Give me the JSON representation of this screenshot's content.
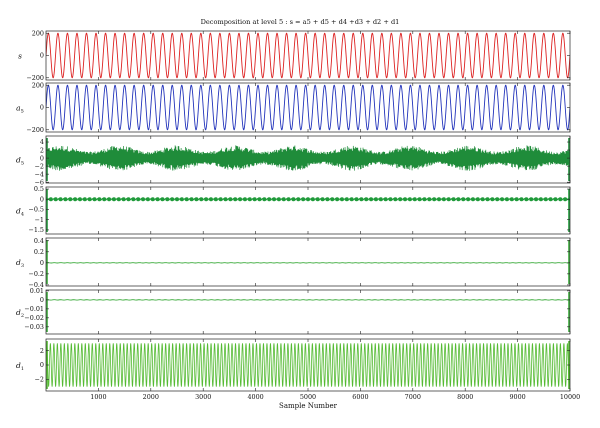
{
  "chart_data": {
    "type": "line",
    "title": "Decomposition at level 5 : s = a5 + d5 + d4 +d3 + d2 + d1",
    "xlabel": "Sample Number",
    "x_range": [
      0,
      10000
    ],
    "x_ticks": [
      "1000",
      "2000",
      "3000",
      "4000",
      "5000",
      "6000",
      "7000",
      "8000",
      "9000",
      "10000"
    ],
    "x_tick_values": [
      1000,
      2000,
      3000,
      4000,
      5000,
      6000,
      7000,
      8000,
      9000,
      10000
    ],
    "grid": false,
    "panels": [
      {
        "key": "s",
        "label_main": "s",
        "label_sub": "",
        "color": "#dd2222",
        "ylim": [
          -220,
          220
        ],
        "y_ticks": [
          "200",
          "0",
          "−200"
        ],
        "y_tick_values": [
          200,
          0,
          -200
        ],
        "signal": {
          "kind": "sine",
          "amplitude": 200,
          "offset": 0,
          "cycles": 55
        }
      },
      {
        "key": "a5",
        "label_main": "a",
        "label_sub": "5",
        "color": "#2233bb",
        "ylim": [
          -220,
          220
        ],
        "y_ticks": [
          "200",
          "0",
          "−200"
        ],
        "y_tick_values": [
          200,
          0,
          -200
        ],
        "signal": {
          "kind": "sine",
          "amplitude": 200,
          "offset": 0,
          "cycles": 55
        }
      },
      {
        "key": "d5",
        "label_main": "d",
        "label_sub": "5",
        "color": "#1f8c3a",
        "ylim": [
          -6.2,
          5.5
        ],
        "y_ticks": [
          "4",
          "2",
          "0",
          "−2",
          "−4",
          "−6"
        ],
        "y_tick_values": [
          4,
          2,
          0,
          -2,
          -4,
          -6
        ],
        "signal": {
          "kind": "noise",
          "amplitude": 3.2,
          "offset": 0,
          "density": 700
        }
      },
      {
        "key": "d4",
        "label_main": "d",
        "label_sub": "4",
        "color": "#1f9a3a",
        "ylim": [
          -1.7,
          0.6
        ],
        "y_ticks": [
          "0.5",
          "0",
          "−0.5",
          "−1",
          "−1.5"
        ],
        "y_tick_values": [
          0.5,
          0,
          -0.5,
          -1,
          -1.5
        ],
        "signal": {
          "kind": "beads",
          "amplitude": 0.035,
          "offset": 0,
          "count": 108
        }
      },
      {
        "key": "d3",
        "label_main": "d",
        "label_sub": "3",
        "color": "#3aaa3a",
        "ylim": [
          -0.42,
          0.45
        ],
        "y_ticks": [
          "0.4",
          "0.2",
          "0",
          "−0.2",
          "−0.4"
        ],
        "y_tick_values": [
          0.4,
          0.2,
          0,
          -0.2,
          -0.4
        ],
        "signal": {
          "kind": "flat",
          "amplitude": 0.003,
          "offset": 0
        }
      },
      {
        "key": "d2",
        "label_main": "d",
        "label_sub": "2",
        "color": "#3aaa3a",
        "ylim": [
          -0.038,
          0.011
        ],
        "y_ticks": [
          "0.01",
          "0",
          "−0.01",
          "−0.02",
          "−0.03"
        ],
        "y_tick_values": [
          0.01,
          0,
          -0.01,
          -0.02,
          -0.03
        ],
        "signal": {
          "kind": "flat",
          "amplitude": 0.0002,
          "offset": 0
        }
      },
      {
        "key": "d1",
        "label_main": "d",
        "label_sub": "1",
        "color": "#55bb33",
        "ylim": [
          -3.6,
          3.6
        ],
        "y_ticks": [
          "2",
          "0",
          "−2"
        ],
        "y_tick_values": [
          2,
          0,
          -2
        ],
        "signal": {
          "kind": "dense",
          "amplitude": 3,
          "offset": 0,
          "cycles": 150
        }
      }
    ]
  }
}
